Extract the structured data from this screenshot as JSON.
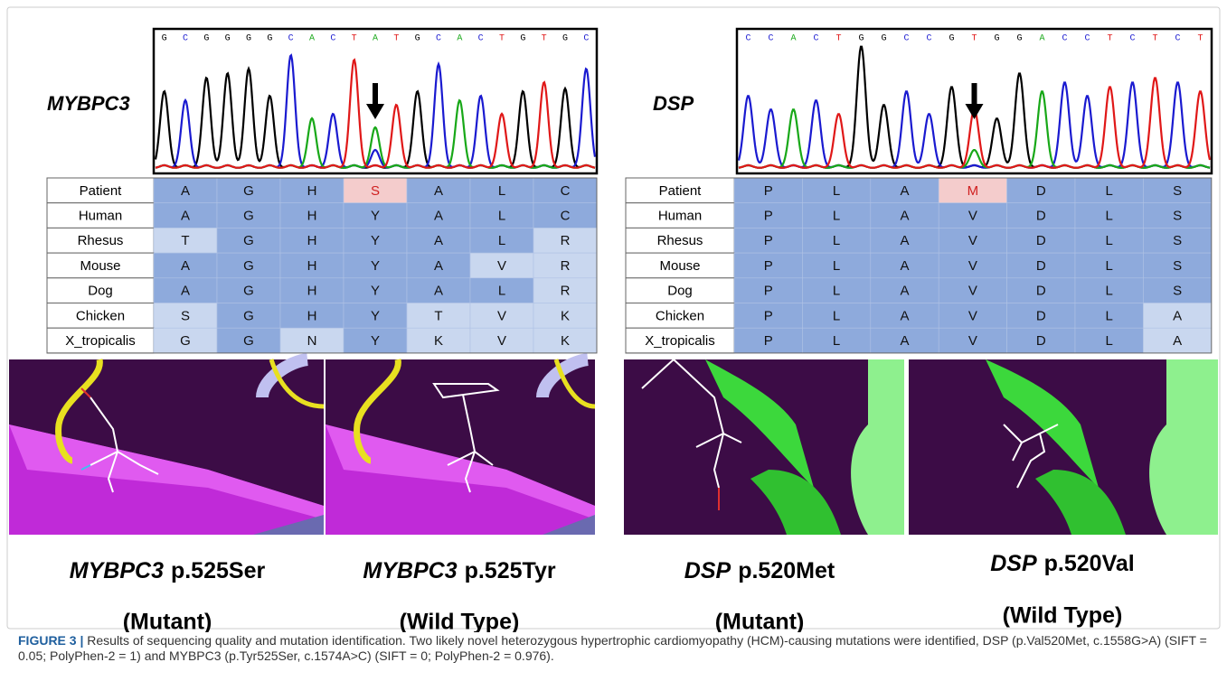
{
  "panels": [
    {
      "gene": "MYBPC3",
      "sequence": [
        "G",
        "C",
        "G",
        "G",
        "G",
        "G",
        "C",
        "A",
        "C",
        "T",
        "A",
        "T",
        "G",
        "C",
        "A",
        "C",
        "T",
        "G",
        "T",
        "G",
        "C"
      ],
      "table": {
        "rows": [
          {
            "species": "Patient",
            "residues": [
              "A",
              "G",
              "H",
              "S",
              "A",
              "L",
              "C"
            ]
          },
          {
            "species": "Human",
            "residues": [
              "A",
              "G",
              "H",
              "Y",
              "A",
              "L",
              "C"
            ]
          },
          {
            "species": "Rhesus",
            "residues": [
              "T",
              "G",
              "H",
              "Y",
              "A",
              "L",
              "R"
            ]
          },
          {
            "species": "Mouse",
            "residues": [
              "A",
              "G",
              "H",
              "Y",
              "A",
              "V",
              "R"
            ]
          },
          {
            "species": "Dog",
            "residues": [
              "A",
              "G",
              "H",
              "Y",
              "A",
              "L",
              "R"
            ]
          },
          {
            "species": "Chicken",
            "residues": [
              "S",
              "G",
              "H",
              "Y",
              "T",
              "V",
              "K"
            ]
          },
          {
            "species": "X_tropicalis",
            "residues": [
              "G",
              "G",
              "N",
              "Y",
              "K",
              "V",
              "K"
            ]
          }
        ]
      }
    },
    {
      "gene": "DSP",
      "sequence": [
        "C",
        "C",
        "A",
        "C",
        "T",
        "G",
        "G",
        "C",
        "C",
        "G",
        "T",
        "G",
        "G",
        "A",
        "C",
        "C",
        "T",
        "C",
        "T",
        "C",
        "T"
      ],
      "table": {
        "rows": [
          {
            "species": "Patient",
            "residues": [
              "P",
              "L",
              "A",
              "M",
              "D",
              "L",
              "S"
            ]
          },
          {
            "species": "Human",
            "residues": [
              "P",
              "L",
              "A",
              "V",
              "D",
              "L",
              "S"
            ]
          },
          {
            "species": "Rhesus",
            "residues": [
              "P",
              "L",
              "A",
              "V",
              "D",
              "L",
              "S"
            ]
          },
          {
            "species": "Mouse",
            "residues": [
              "P",
              "L",
              "A",
              "V",
              "D",
              "L",
              "S"
            ]
          },
          {
            "species": "Dog",
            "residues": [
              "P",
              "L",
              "A",
              "V",
              "D",
              "L",
              "S"
            ]
          },
          {
            "species": "Chicken",
            "residues": [
              "P",
              "L",
              "A",
              "V",
              "D",
              "L",
              "A"
            ]
          },
          {
            "species": "X_tropicalis",
            "residues": [
              "P",
              "L",
              "A",
              "V",
              "D",
              "L",
              "A"
            ]
          }
        ]
      }
    }
  ],
  "structures": [
    {
      "gene": "MYBPC3",
      "variant": "p.525Ser",
      "state": "(Mutant)"
    },
    {
      "gene": "MYBPC3",
      "variant": "p.525Tyr",
      "state": "(Wild Type)"
    },
    {
      "gene": "DSP",
      "variant": "p.520Met",
      "state": "(Mutant)"
    },
    {
      "gene": "DSP",
      "variant": "p.520Val",
      "state": "(Wild Type)"
    }
  ],
  "caption": {
    "label": "FIGURE 3 |",
    "text": "Results of sequencing quality and mutation identification. Two likely novel heterozygous hypertrophic cardiomyopathy (HCM)-causing mutations were identified, DSP (p.Val520Met, c.1558G>A) (SIFT = 0.05; PolyPhen-2 = 1) and MYBPC3 (p.Tyr525Ser, c.1574A>C) (SIFT = 0; PolyPhen-2 = 0.976)."
  }
}
